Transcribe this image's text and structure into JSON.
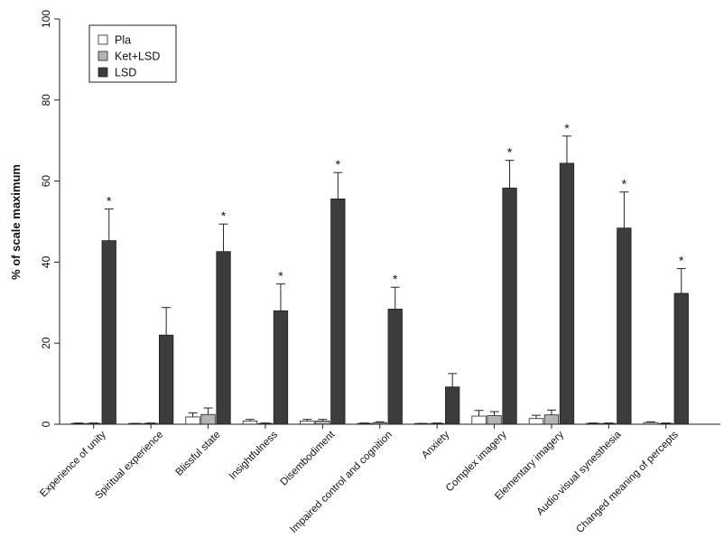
{
  "chart_data": {
    "type": "bar",
    "title": "",
    "xlabel": "",
    "ylabel": "% of scale maximum",
    "ylim": [
      0,
      100
    ],
    "yticks": [
      0,
      20,
      40,
      60,
      80,
      100
    ],
    "grid": false,
    "legend_position": "top-left",
    "categories": [
      "Experience of unity",
      "Spiritual experience",
      "Blissful state",
      "Insightfulness",
      "Disembodiment",
      "Impaired control and cognition",
      "Anxiety",
      "Complex imagery",
      "Elementary imagery",
      "Audio-visual synesthesia",
      "Changed meaning of percepts"
    ],
    "series": [
      {
        "name": "Pla",
        "color": "#ffffff",
        "values": [
          0.2,
          0.1,
          1.8,
          0.8,
          0.8,
          0.2,
          0.1,
          2.0,
          1.4,
          0.2,
          0.4
        ],
        "errors": [
          0.1,
          0.1,
          1.0,
          0.4,
          0.4,
          0.1,
          0.1,
          1.4,
          0.8,
          0.1,
          0.2
        ]
      },
      {
        "name": "Ket+LSD",
        "color": "#b4b4b4",
        "values": [
          0.2,
          0.2,
          2.4,
          0.2,
          0.8,
          0.4,
          0.2,
          2.1,
          2.3,
          0.2,
          0.2
        ],
        "errors": [
          0.1,
          0.1,
          1.6,
          0.1,
          0.4,
          0.2,
          0.1,
          1.0,
          1.2,
          0.1,
          0.1
        ]
      },
      {
        "name": "LSD",
        "color": "#3c3c3c",
        "values": [
          45.3,
          22.0,
          42.6,
          28.0,
          55.6,
          28.4,
          9.2,
          58.3,
          64.4,
          48.4,
          32.3
        ],
        "errors": [
          7.8,
          6.8,
          6.8,
          6.6,
          6.5,
          5.4,
          3.3,
          6.8,
          6.7,
          8.9,
          6.1
        ]
      }
    ],
    "annotations": [
      {
        "category": "Experience of unity",
        "text": "*"
      },
      {
        "category": "Blissful state",
        "text": "*"
      },
      {
        "category": "Insightfulness",
        "text": "*"
      },
      {
        "category": "Disembodiment",
        "text": "*"
      },
      {
        "category": "Impaired control and cognition",
        "text": "*"
      },
      {
        "category": "Complex imagery",
        "text": "*"
      },
      {
        "category": "Elementary imagery",
        "text": "*"
      },
      {
        "category": "Audio-visual synesthesia",
        "text": "*"
      },
      {
        "category": "Changed meaning of percepts",
        "text": "*"
      }
    ]
  }
}
